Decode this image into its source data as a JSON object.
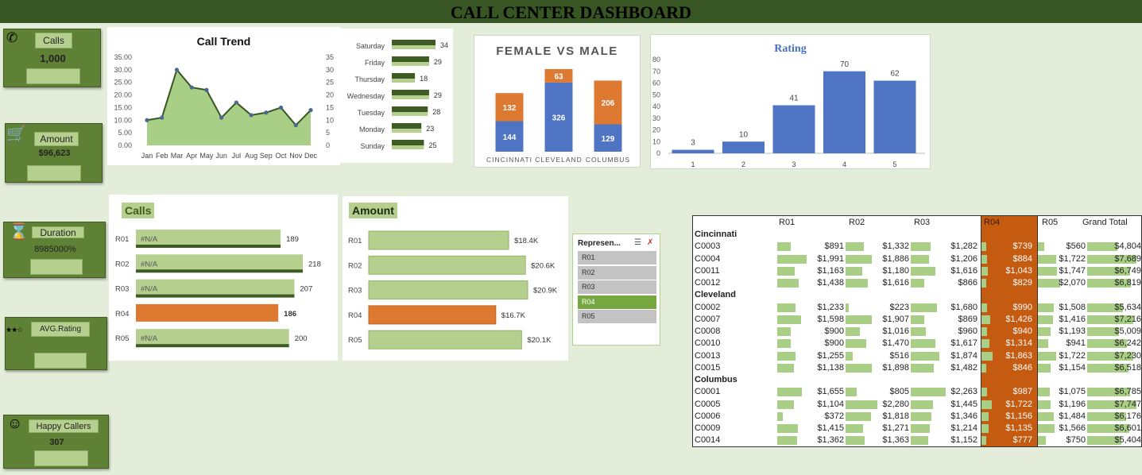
{
  "dashboard": {
    "title": "CALL CENTER DASHBOARD"
  },
  "kpis": [
    {
      "label": "Calls",
      "value": "1,000",
      "icon": "phone-icon"
    },
    {
      "label": "Amount",
      "value": "$96,623",
      "icon": "shopping-cart-icon"
    },
    {
      "label": "Duration",
      "value": "8985000%",
      "icon": "hourglass-icon"
    },
    {
      "label": "AVG.Rating",
      "value": "",
      "icon": "stars-icon"
    },
    {
      "label": "Happy Callers",
      "value": "307",
      "icon": "smiley-icon"
    }
  ],
  "colors": {
    "banner": "#375623",
    "kpi": "#5f8135",
    "light_green": "#b5cf8f",
    "orange": "#dd7931",
    "blue": "#4f74c4",
    "dark_green": "#3d5b22"
  },
  "call_trend": {
    "title": "Call Trend",
    "months": [
      "Jan",
      "Feb",
      "Mar",
      "Apr",
      "May",
      "Jun",
      "Jul",
      "Aug",
      "Sep",
      "Oct",
      "Nov",
      "Dec"
    ],
    "values": [
      10,
      11,
      30,
      23,
      22,
      11,
      17,
      12,
      13,
      15,
      8,
      14
    ],
    "y_left_ticks": [
      "35.00",
      "30.00",
      "25.00",
      "20.00",
      "15.00",
      "10.00",
      "5.00",
      "0.00"
    ],
    "y_right_ticks": [
      "35",
      "30",
      "25",
      "20",
      "15",
      "10",
      "5",
      "0"
    ]
  },
  "weekday": {
    "days": [
      "Saturday",
      "Friday",
      "Thursday",
      "Wednesday",
      "Tuesday",
      "Monday",
      "Sunday"
    ],
    "values": [
      34,
      29,
      18,
      29,
      28,
      23,
      25
    ]
  },
  "gender": {
    "title": "FEMALE VS MALE",
    "cities": [
      "CINCINNATI",
      "CLEVELAND",
      "COLUMBUS"
    ],
    "male": [
      144,
      326,
      129
    ],
    "female": [
      132,
      63,
      206
    ]
  },
  "rating": {
    "title": "Rating",
    "categories": [
      "1",
      "2",
      "3",
      "4",
      "5"
    ],
    "values": [
      3,
      10,
      41,
      70,
      62
    ],
    "y_ticks": [
      "80",
      "70",
      "60",
      "50",
      "40",
      "30",
      "20",
      "10",
      "0"
    ]
  },
  "calls_by_rep": {
    "title": "Calls",
    "reps": [
      "R01",
      "R02",
      "R03",
      "R04",
      "R05"
    ],
    "values": [
      189,
      218,
      207,
      186,
      200
    ],
    "na_text": [
      "#N/A",
      "#N/A",
      "#N/A",
      "",
      "#N/A"
    ],
    "highlight": "R04"
  },
  "amount_by_rep": {
    "title": "Amount",
    "reps": [
      "R01",
      "R02",
      "R03",
      "R04",
      "R05"
    ],
    "values": [
      18.4,
      20.6,
      20.9,
      16.7,
      20.1
    ],
    "labels": [
      "$18.4K",
      "$20.6K",
      "$20.9K",
      "$16.7K",
      "$20.1K"
    ],
    "highlight": "R04"
  },
  "slicer": {
    "title": "Represen...",
    "items": [
      "R01",
      "R02",
      "R03",
      "R04",
      "R05"
    ],
    "selected": "R04"
  },
  "pivot": {
    "headers": [
      "R01",
      "R02",
      "R03",
      "R04",
      "R05",
      "Grand Total"
    ],
    "groups": [
      {
        "city": "Cincinnati",
        "rows": [
          {
            "id": "C0003",
            "vals": [
              "$891",
              "$1,332",
              "$1,282",
              "$739",
              "$560",
              "$4,804"
            ]
          },
          {
            "id": "C0004",
            "vals": [
              "$1,991",
              "$1,886",
              "$1,206",
              "$884",
              "$1,722",
              "$7,689"
            ]
          },
          {
            "id": "C0011",
            "vals": [
              "$1,163",
              "$1,180",
              "$1,616",
              "$1,043",
              "$1,747",
              "$6,749"
            ]
          },
          {
            "id": "C0012",
            "vals": [
              "$1,438",
              "$1,616",
              "$866",
              "$829",
              "$2,070",
              "$6,819"
            ]
          }
        ]
      },
      {
        "city": "Cleveland",
        "rows": [
          {
            "id": "C0002",
            "vals": [
              "$1,233",
              "$223",
              "$1,680",
              "$990",
              "$1,508",
              "$5,634"
            ]
          },
          {
            "id": "C0007",
            "vals": [
              "$1,598",
              "$1,907",
              "$869",
              "$1,426",
              "$1,416",
              "$7,216"
            ]
          },
          {
            "id": "C0008",
            "vals": [
              "$900",
              "$1,016",
              "$960",
              "$940",
              "$1,193",
              "$5,009"
            ]
          },
          {
            "id": "C0010",
            "vals": [
              "$900",
              "$1,470",
              "$1,617",
              "$1,314",
              "$941",
              "$6,242"
            ]
          },
          {
            "id": "C0013",
            "vals": [
              "$1,255",
              "$516",
              "$1,874",
              "$1,863",
              "$1,722",
              "$7,230"
            ]
          },
          {
            "id": "C0015",
            "vals": [
              "$1,138",
              "$1,898",
              "$1,482",
              "$846",
              "$1,154",
              "$6,518"
            ]
          }
        ]
      },
      {
        "city": "Columbus",
        "rows": [
          {
            "id": "C0001",
            "vals": [
              "$1,655",
              "$805",
              "$2,263",
              "$987",
              "$1,075",
              "$6,785"
            ]
          },
          {
            "id": "C0005",
            "vals": [
              "$1,104",
              "$2,280",
              "$1,445",
              "$1,722",
              "$1,196",
              "$7,747"
            ]
          },
          {
            "id": "C0006",
            "vals": [
              "$372",
              "$1,818",
              "$1,346",
              "$1,156",
              "$1,484",
              "$6,176"
            ]
          },
          {
            "id": "C0009",
            "vals": [
              "$1,415",
              "$1,271",
              "$1,214",
              "$1,135",
              "$1,566",
              "$6,601"
            ]
          },
          {
            "id": "C0014",
            "vals": [
              "$1,362",
              "$1,363",
              "$1,152",
              "$777",
              "$750",
              "$5,404"
            ]
          }
        ]
      }
    ]
  }
}
